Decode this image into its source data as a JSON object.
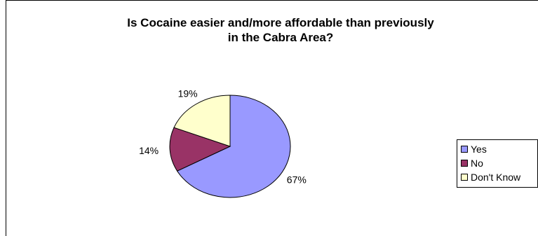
{
  "chart_data": {
    "type": "pie",
    "title_lines": [
      "Is Cocaine easier and/more affordable than previously",
      "in the Cabra Area?"
    ],
    "categories": [
      "Yes",
      "No",
      "Don't Know"
    ],
    "values": [
      67,
      14,
      19
    ],
    "value_labels": [
      "67%",
      "14%",
      "19%"
    ],
    "colors": [
      "#9999ff",
      "#993366",
      "#ffffcc"
    ],
    "legend_position": "right"
  }
}
